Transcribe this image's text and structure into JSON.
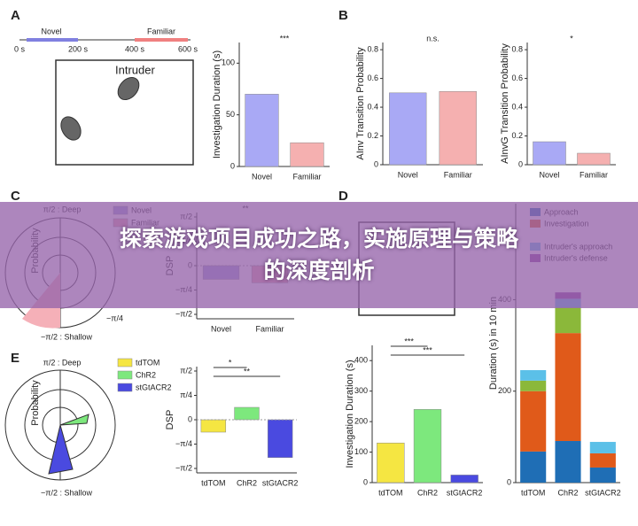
{
  "banner": {
    "line1": "探索游戏项目成功之路，实施原理与策略",
    "line2": "的深度剖析"
  },
  "panels": [
    "A",
    "B",
    "C",
    "D",
    "E"
  ],
  "decor": {
    "timeline": [
      "Novel",
      "Familiar"
    ],
    "time_ticks": [
      "0 s",
      "200 s",
      "400 s",
      "600 s"
    ],
    "intruder": "Intruder",
    "deep": "π/2 : Deep",
    "shallow": "−π/2 : Shallow",
    "minus_quarter": "−π/4",
    "probability": "Probability"
  },
  "chart_data": [
    {
      "type": "bar",
      "ylabel": "Investigation Duration (s)",
      "categories": [
        "Novel",
        "Familiar"
      ],
      "values": [
        70,
        23
      ],
      "colors": [
        "#a9a9f5",
        "#f5b0b0"
      ],
      "ylim": [
        0,
        120
      ],
      "yticks": [
        0,
        50,
        100
      ],
      "annotations": [
        "***"
      ]
    },
    {
      "type": "bar",
      "ylabel": "AInv Transition Probability",
      "categories": [
        "Novel",
        "Familiar"
      ],
      "values": [
        0.5,
        0.51
      ],
      "colors": [
        "#a9a9f5",
        "#f5b0b0"
      ],
      "ylim": [
        0,
        0.85
      ],
      "yticks": [
        0,
        0.2,
        0.4,
        0.6,
        0.8
      ],
      "annotations": [
        "n.s."
      ]
    },
    {
      "type": "bar",
      "ylabel": "AInvG Transition Probability",
      "categories": [
        "Novel",
        "Familiar"
      ],
      "values": [
        0.16,
        0.08
      ],
      "colors": [
        "#a9a9f5",
        "#f5b0b0"
      ],
      "ylim": [
        0,
        0.85
      ],
      "yticks": [
        0,
        0.2,
        0.4,
        0.6,
        0.8
      ],
      "annotations": [
        "*"
      ]
    },
    {
      "type": "bar",
      "ylabel": "DSP",
      "categories": [
        "Novel",
        "Familiar"
      ],
      "values": [
        -0.44,
        -0.55
      ],
      "colors": [
        "#9a9ad8",
        "#e8a0a8"
      ],
      "ylim": [
        -1.7137,
        1.7137
      ],
      "yticks": [
        {
          "value": 1.5708,
          "label": "π/2"
        },
        {
          "value": 0.7854,
          "label": "π/4"
        },
        0,
        {
          "value": -0.7854,
          "label": "−π/4"
        },
        {
          "value": -1.5708,
          "label": "−π/2"
        }
      ],
      "annotations": [
        "**"
      ],
      "legend": "left"
    },
    {
      "type": "bar",
      "ylabel": "DSP",
      "categories": [
        "tdTOM",
        "ChR2",
        "stGtACR2"
      ],
      "values": [
        -0.4,
        0.4,
        -1.22
      ],
      "colors": [
        "#f5e642",
        "#7de87d",
        "#4a4ae0"
      ],
      "ylim": [
        -1.7137,
        1.7137
      ],
      "yticks": [
        {
          "value": 1.5708,
          "label": "π/2"
        },
        {
          "value": 0.7854,
          "label": "π/4"
        },
        0,
        {
          "value": -0.7854,
          "label": "−π/4"
        },
        {
          "value": -1.5708,
          "label": "−π/2"
        }
      ],
      "annotations": [
        "*",
        "**"
      ],
      "legend": "left"
    },
    {
      "type": "bar",
      "ylabel": "Investigation Duration (s)",
      "categories": [
        "tdTOM",
        "ChR2",
        "stGtACR2"
      ],
      "values": [
        130,
        240,
        25
      ],
      "colors": [
        "#f5e642",
        "#7de87d",
        "#4a4ae0"
      ],
      "ylim": [
        0,
        450
      ],
      "yticks": [
        0,
        100,
        200,
        300,
        400
      ],
      "annotations": [
        "***",
        "***"
      ]
    },
    {
      "type": "stacked",
      "ylabel": "Duration (s) in 10 min",
      "categories": [
        "tdTOM",
        "ChR2",
        "stGtACR2"
      ],
      "ylim": [
        0,
        610
      ],
      "yticks": [
        0,
        200,
        400
      ],
      "legend": "upper left",
      "series": [
        {
          "name": "Approach",
          "color": "#1f6eb5",
          "values": [
            68,
            91,
            33
          ]
        },
        {
          "name": "Investigation",
          "color": "#e05a1a",
          "values": [
            132,
            236,
            31
          ]
        },
        {
          "name": null,
          "color": "#8bb83a",
          "values": [
            23,
            56,
            0
          ]
        },
        {
          "name": "Intruder's approach",
          "color": "#5bc0e8",
          "values": [
            23,
            19,
            25
          ]
        },
        {
          "name": "Intruder's defense",
          "color": "#8a3a9a",
          "values": [
            0,
            14,
            0
          ]
        }
      ]
    }
  ]
}
